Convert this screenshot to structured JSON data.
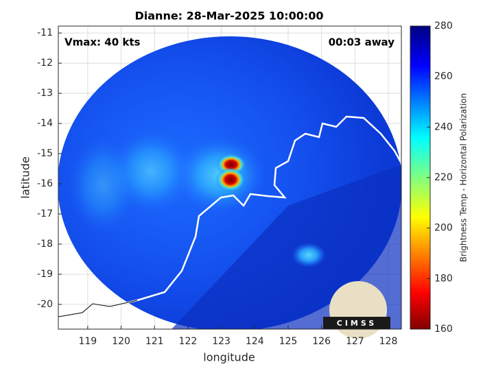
{
  "map": {
    "title": "Dianne: 28-Mar-2025 10:00:00",
    "annotations": {
      "vmax": "Vmax: 40 kts",
      "time_away": "00:03 away"
    },
    "xlabel": "longitude",
    "ylabel": "latitude",
    "xlim": [
      118.12,
      128.39
    ],
    "ylim": [
      -20.82,
      -10.77
    ],
    "xticks": [
      119,
      120,
      121,
      122,
      123,
      124,
      125,
      126,
      127,
      128
    ],
    "yticks": [
      -11,
      -12,
      -13,
      -14,
      -15,
      -16,
      -17,
      -18,
      -19,
      -20
    ],
    "grid": true,
    "colorbar": {
      "label": "Brightness Temp - Horizontal Polarization",
      "lim": [
        160,
        280
      ],
      "ticks": [
        160,
        180,
        200,
        220,
        240,
        260,
        280
      ]
    },
    "logo_text": "CIMSS"
  }
}
